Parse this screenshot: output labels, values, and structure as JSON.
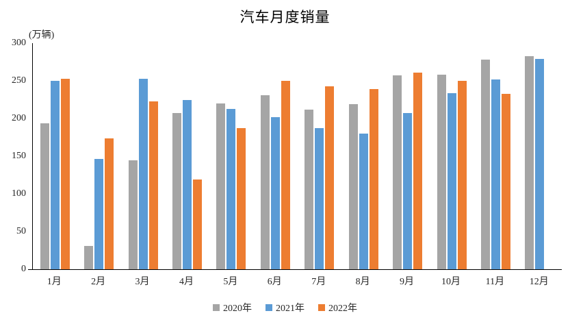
{
  "page": {
    "background_color": "#ffffff",
    "text_color": "#262626",
    "axis_color": "#000000"
  },
  "chart_data": {
    "type": "bar",
    "title": "汽车月度销量",
    "unit_label": "(万辆)",
    "xlabel": "",
    "ylabel": "万辆",
    "categories": [
      "1月",
      "2月",
      "3月",
      "4月",
      "5月",
      "6月",
      "7月",
      "8月",
      "9月",
      "10月",
      "11月",
      "12月"
    ],
    "series": [
      {
        "name": "2020年",
        "color": "#A5A5A5",
        "values": [
          194,
          31,
          145,
          207,
          220,
          231,
          212,
          219,
          257,
          258,
          278,
          283
        ]
      },
      {
        "name": "2021年",
        "color": "#5B9BD5",
        "values": [
          250,
          146,
          253,
          225,
          213,
          202,
          187,
          180,
          207,
          234,
          252,
          279
        ]
      },
      {
        "name": "2022年",
        "color": "#ED7D31",
        "values": [
          253,
          174,
          223,
          119,
          187,
          250,
          243,
          239,
          261,
          250,
          233,
          null
        ]
      }
    ],
    "ylim": [
      0,
      300
    ],
    "yticks": [
      0,
      50,
      100,
      150,
      200,
      250,
      300
    ],
    "grid": false,
    "legend_position": "bottom"
  }
}
